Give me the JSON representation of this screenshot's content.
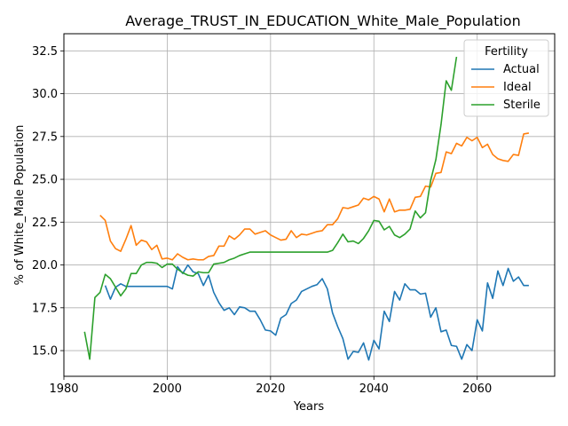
{
  "chart_data": {
    "type": "line",
    "title": "Average_TRUST_IN_EDUCATION_White_Male_Population",
    "xlabel": "Years",
    "ylabel": "% of White_Male Population",
    "xlim": [
      1980,
      2075
    ],
    "ylim": [
      13.5,
      33.5
    ],
    "xticks": [
      1980,
      2000,
      2020,
      2040,
      2060
    ],
    "yticks": [
      15.0,
      17.5,
      20.0,
      22.5,
      25.0,
      27.5,
      30.0,
      32.5
    ],
    "grid": true,
    "legend": {
      "title": "Fertility",
      "placement": "top-right"
    },
    "series": [
      {
        "name": "Actual",
        "color": "#1f77b4",
        "x": [
          1988,
          1989,
          1990,
          1991,
          1992,
          1993,
          1994,
          1995,
          1996,
          1997,
          1998,
          1999,
          2000,
          2001,
          2002,
          2003,
          2004,
          2005,
          2006,
          2007,
          2008,
          2009,
          2010,
          2011,
          2012,
          2013,
          2014,
          2015,
          2016,
          2017,
          2018,
          2019,
          2020,
          2021,
          2022,
          2023,
          2024,
          2025,
          2026,
          2027,
          2028,
          2029,
          2030,
          2031,
          2032,
          2033,
          2034,
          2035,
          2036,
          2037,
          2038,
          2039,
          2040,
          2041,
          2042,
          2043,
          2044,
          2045,
          2046,
          2047,
          2048,
          2049,
          2050,
          2051,
          2052,
          2053,
          2054,
          2055,
          2056,
          2057,
          2058,
          2059,
          2060,
          2061,
          2062,
          2063,
          2064,
          2065,
          2066,
          2067,
          2068,
          2069,
          2070
        ],
        "values": [
          18.8,
          18.0,
          18.7,
          18.9,
          18.75,
          18.75,
          18.75,
          18.75,
          18.75,
          18.75,
          18.75,
          18.75,
          18.75,
          18.6,
          19.9,
          19.5,
          20.0,
          19.6,
          19.5,
          18.8,
          19.4,
          18.4,
          17.8,
          17.35,
          17.5,
          17.1,
          17.55,
          17.5,
          17.3,
          17.3,
          16.8,
          16.2,
          16.15,
          15.9,
          16.9,
          17.1,
          17.75,
          17.95,
          18.45,
          18.6,
          18.75,
          18.85,
          19.2,
          18.6,
          17.2,
          16.4,
          15.7,
          14.5,
          14.95,
          14.9,
          15.45,
          14.45,
          15.6,
          15.1,
          17.3,
          16.7,
          18.45,
          17.95,
          18.9,
          18.55,
          18.55,
          18.3,
          18.35,
          16.95,
          17.5,
          16.1,
          16.2,
          15.3,
          15.25,
          14.5,
          15.35,
          15.0,
          16.8,
          16.15,
          18.95,
          18.05,
          19.65,
          18.8,
          19.8,
          19.05,
          19.3,
          18.8,
          18.8
        ]
      },
      {
        "name": "Ideal",
        "color": "#ff7f0e",
        "x": [
          1987,
          1988,
          1989,
          1990,
          1991,
          1992,
          1993,
          1994,
          1995,
          1996,
          1997,
          1998,
          1999,
          2000,
          2001,
          2002,
          2003,
          2004,
          2005,
          2006,
          2007,
          2008,
          2009,
          2010,
          2011,
          2012,
          2013,
          2014,
          2015,
          2016,
          2017,
          2018,
          2019,
          2020,
          2021,
          2022,
          2023,
          2024,
          2025,
          2026,
          2027,
          2028,
          2029,
          2030,
          2031,
          2032,
          2033,
          2034,
          2035,
          2036,
          2037,
          2038,
          2039,
          2040,
          2041,
          2042,
          2043,
          2044,
          2045,
          2046,
          2047,
          2048,
          2049,
          2050,
          2051,
          2052,
          2053,
          2054,
          2055,
          2056,
          2057,
          2058,
          2059,
          2060,
          2061,
          2062,
          2063,
          2064,
          2065,
          2066,
          2067,
          2068,
          2069,
          2070
        ],
        "values": [
          22.9,
          22.6,
          21.4,
          20.95,
          20.8,
          21.5,
          22.3,
          21.15,
          21.45,
          21.35,
          20.9,
          21.15,
          20.35,
          20.4,
          20.3,
          20.65,
          20.45,
          20.3,
          20.35,
          20.3,
          20.3,
          20.5,
          20.55,
          21.1,
          21.1,
          21.7,
          21.5,
          21.75,
          22.1,
          22.1,
          21.8,
          21.9,
          22.0,
          21.75,
          21.6,
          21.45,
          21.5,
          22.0,
          21.6,
          21.8,
          21.75,
          21.85,
          21.95,
          22.0,
          22.35,
          22.35,
          22.7,
          23.35,
          23.3,
          23.4,
          23.5,
          23.9,
          23.8,
          24.0,
          23.85,
          23.1,
          23.85,
          23.1,
          23.2,
          23.2,
          23.25,
          23.95,
          24.0,
          24.6,
          24.55,
          25.35,
          25.4,
          26.6,
          26.5,
          27.1,
          26.95,
          27.45,
          27.25,
          27.45,
          26.85,
          27.05,
          26.45,
          26.2,
          26.1,
          26.05,
          26.45,
          26.4,
          27.65,
          27.7
        ]
      },
      {
        "name": "Sterile",
        "color": "#2ca02c",
        "x": [
          1984,
          1985,
          1986,
          1987,
          1988,
          1989,
          1990,
          1991,
          1992,
          1993,
          1994,
          1995,
          1996,
          1997,
          1998,
          1999,
          2000,
          2001,
          2002,
          2003,
          2004,
          2005,
          2006,
          2007,
          2008,
          2009,
          2010,
          2011,
          2012,
          2013,
          2014,
          2015,
          2016,
          2017,
          2018,
          2019,
          2020,
          2021,
          2022,
          2023,
          2024,
          2025,
          2026,
          2027,
          2028,
          2029,
          2030,
          2031,
          2032,
          2033,
          2034,
          2035,
          2036,
          2037,
          2038,
          2039,
          2040,
          2041,
          2042,
          2043,
          2044,
          2045,
          2046,
          2047,
          2048,
          2049,
          2050,
          2051,
          2052,
          2053,
          2054,
          2055,
          2056
        ],
        "values": [
          16.1,
          14.5,
          18.1,
          18.4,
          19.45,
          19.2,
          18.7,
          18.2,
          18.6,
          19.5,
          19.5,
          20.0,
          20.15,
          20.15,
          20.1,
          19.85,
          20.05,
          20.05,
          19.75,
          19.55,
          19.4,
          19.35,
          19.6,
          19.55,
          19.55,
          20.05,
          20.1,
          20.15,
          20.3,
          20.4,
          20.55,
          20.65,
          20.75,
          20.75,
          20.75,
          20.75,
          20.75,
          20.75,
          20.75,
          20.75,
          20.75,
          20.75,
          20.75,
          20.75,
          20.75,
          20.75,
          20.75,
          20.75,
          20.85,
          21.3,
          21.8,
          21.35,
          21.4,
          21.25,
          21.55,
          22.0,
          22.6,
          22.55,
          22.05,
          22.25,
          21.75,
          21.6,
          21.8,
          22.1,
          23.15,
          22.75,
          23.05,
          24.95,
          26.15,
          28.2,
          30.75,
          30.2,
          32.15
        ]
      }
    ]
  }
}
